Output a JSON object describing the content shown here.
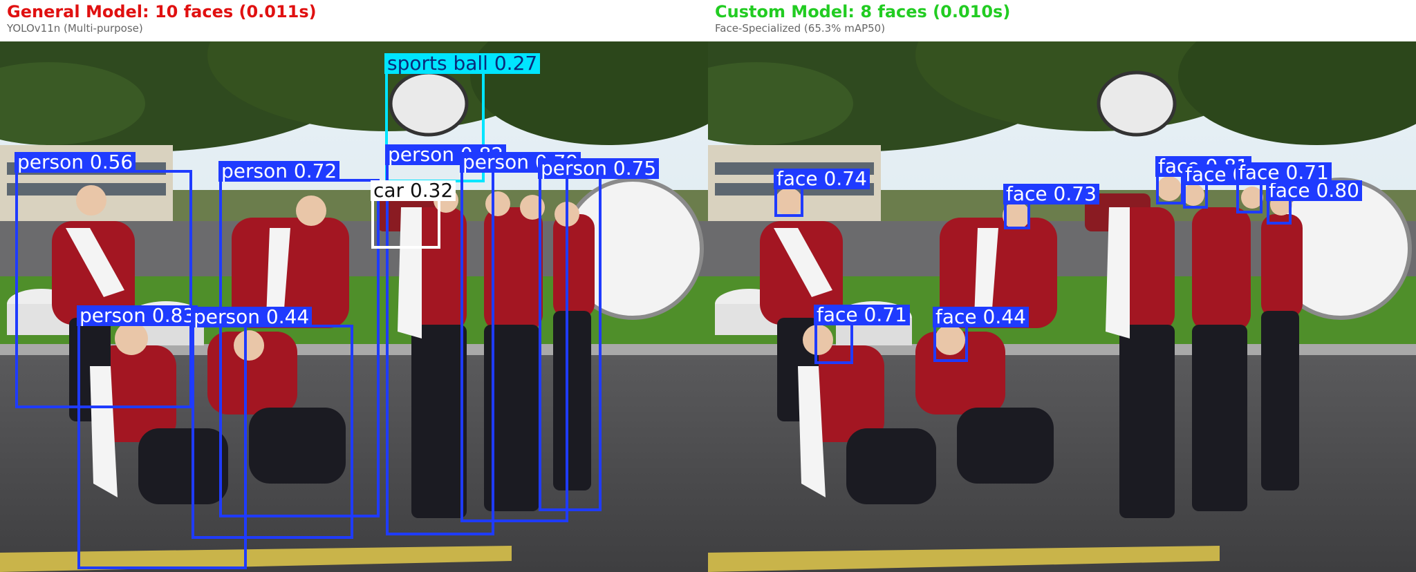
{
  "left_panel": {
    "title": "General Model: 10 faces (0.011s)",
    "subtitle": "YOLOv11n (Multi-purpose)",
    "title_color": "#e01010",
    "detections": [
      {
        "label": "sports ball 0.27",
        "color": "#00e5ff",
        "text_color": "#0a2a7a"
      },
      {
        "label": "person 0.82",
        "color": "#1f3bff",
        "text_color": "#ffffff"
      },
      {
        "label": "person 0.79",
        "color": "#1f3bff",
        "text_color": "#ffffff"
      },
      {
        "label": "person 0.56",
        "color": "#1f3bff",
        "text_color": "#ffffff"
      },
      {
        "label": "person 0.72",
        "color": "#1f3bff",
        "text_color": "#ffffff"
      },
      {
        "label": "car 0.32",
        "color": "#ffffff",
        "text_color": "#111111"
      },
      {
        "label": "person 0.75",
        "color": "#1f3bff",
        "text_color": "#ffffff"
      },
      {
        "label": "person 0.83",
        "color": "#1f3bff",
        "text_color": "#ffffff"
      },
      {
        "label": "person 0.44",
        "color": "#1f3bff",
        "text_color": "#ffffff"
      }
    ]
  },
  "right_panel": {
    "title": "Custom Model: 8 faces (0.010s)",
    "subtitle": "Face-Specialized (65.3% mAP50)",
    "title_color": "#22cc22",
    "detections": [
      {
        "label": "face 0.74",
        "color": "#1f3bff",
        "text_color": "#ffffff"
      },
      {
        "label": "face 0.73",
        "color": "#1f3bff",
        "text_color": "#ffffff"
      },
      {
        "label": "face 0.81",
        "color": "#1f3bff",
        "text_color": "#ffffff"
      },
      {
        "label": "face 0.71",
        "color": "#1f3bff",
        "text_color": "#ffffff"
      },
      {
        "label": "face 0.80",
        "color": "#1f3bff",
        "text_color": "#ffffff"
      },
      {
        "label": "face 0.71",
        "color": "#1f3bff",
        "text_color": "#ffffff"
      },
      {
        "label": "face 0.44",
        "color": "#1f3bff",
        "text_color": "#ffffff"
      }
    ]
  }
}
